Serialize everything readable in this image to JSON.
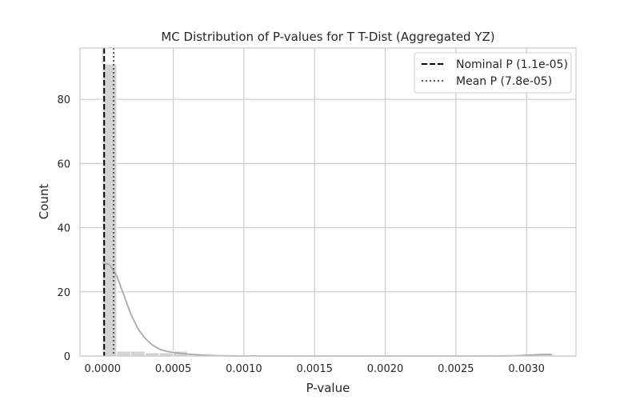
{
  "chart_data": {
    "type": "bar",
    "title": "MC Distribution of P-values for T T-Dist (Aggregated YZ)",
    "xlabel": "P-value",
    "ylabel": "Count",
    "xlim": [
      -0.00016,
      0.00335
    ],
    "ylim": [
      0,
      96
    ],
    "grid": true,
    "legend_position": "top-right",
    "xticks": [
      0.0,
      0.0005,
      0.001,
      0.0015,
      0.002,
      0.0025,
      0.003
    ],
    "xtick_labels": [
      "0.0000",
      "0.0005",
      "0.0010",
      "0.0015",
      "0.0020",
      "0.0025",
      "0.0030"
    ],
    "yticks": [
      0,
      20,
      40,
      60,
      80
    ],
    "ytick_labels": [
      "0",
      "20",
      "40",
      "60",
      "80"
    ],
    "histogram": {
      "bin_width": 0.0001,
      "bin_starts": [
        0.0,
        0.0001,
        0.0002,
        0.0003,
        0.0004,
        0.0005,
        0.0031
      ],
      "counts": [
        91,
        1.5,
        1.5,
        1,
        1,
        1.5,
        0.5
      ],
      "color": "#d3d3d3"
    },
    "kde": {
      "x": [
        0.0,
        5e-05,
        0.0001,
        0.00015,
        0.0002,
        0.00025,
        0.0003,
        0.00035,
        0.0004,
        0.00045,
        0.0005,
        0.0006,
        0.0007,
        0.0008,
        0.0009,
        0.001,
        0.0015,
        0.002,
        0.0025,
        0.0029,
        0.003,
        0.0031,
        0.00318
      ],
      "y": [
        29,
        28.5,
        25,
        19,
        13,
        8.5,
        5.5,
        3.5,
        2.2,
        1.5,
        1.1,
        0.6,
        0.3,
        0.12,
        0.05,
        0.02,
        0,
        0,
        0,
        0.05,
        0.25,
        0.45,
        0.5
      ],
      "color": "#a9a9a9"
    },
    "series": [
      {
        "name": "Nominal P (1.1e-05)",
        "value": 1.1e-05,
        "style": "dashed",
        "color": "#000000"
      },
      {
        "name": "Mean P (7.8e-05)",
        "value": 7.8e-05,
        "style": "dotted",
        "color": "#555555"
      }
    ]
  }
}
